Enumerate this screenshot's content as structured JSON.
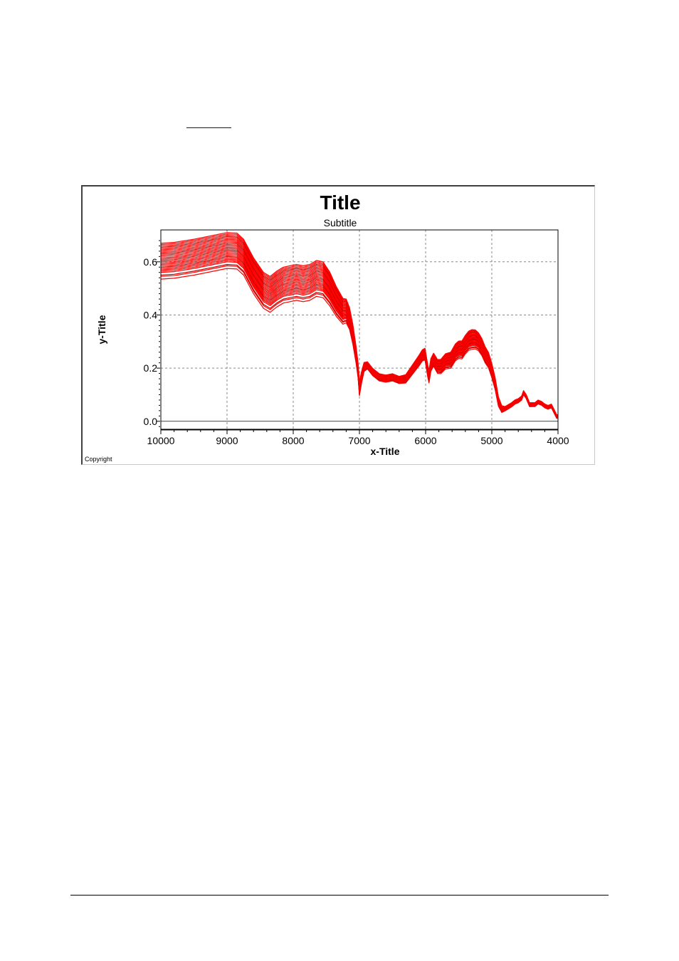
{
  "link": {
    "text": ""
  },
  "chart_data": {
    "type": "line",
    "title": "Title",
    "subtitle": "Subtitle",
    "xlabel": "x-Title",
    "ylabel": "y-Title",
    "copyright": "Copyright",
    "xlim": [
      10000,
      4000
    ],
    "ylim": [
      -0.03,
      0.72
    ],
    "x_reversed": true,
    "x_ticks": [
      "10000",
      "9000",
      "8000",
      "7000",
      "6000",
      "5000",
      "4000"
    ],
    "y_ticks": [
      "0.0",
      "0.2",
      "0.4",
      "0.6"
    ],
    "x_tick_values": [
      10000,
      9000,
      8000,
      7000,
      6000,
      5000,
      4000
    ],
    "y_tick_values": [
      0.0,
      0.2,
      0.4,
      0.6
    ],
    "grid": true,
    "series_color": "#ff0000",
    "series_color_alt": "#c00000",
    "base_spectrum": {
      "x": [
        10000,
        9800,
        9500,
        9200,
        9000,
        8850,
        8750,
        8600,
        8450,
        8350,
        8250,
        8150,
        8050,
        7950,
        7850,
        7750,
        7650,
        7550,
        7450,
        7350,
        7250,
        7200,
        7150,
        7100,
        7050,
        7020,
        7000,
        6970,
        6930,
        6880,
        6800,
        6700,
        6600,
        6500,
        6400,
        6300,
        6200,
        6100,
        6050,
        6010,
        5970,
        5950,
        5920,
        5880,
        5820,
        5770,
        5700,
        5620,
        5550,
        5500,
        5450,
        5400,
        5350,
        5300,
        5250,
        5200,
        5150,
        5100,
        5050,
        5000,
        4950,
        4900,
        4850,
        4800,
        4700,
        4650,
        4600,
        4550,
        4520,
        4480,
        4430,
        4350,
        4300,
        4250,
        4200,
        4150,
        4100,
        4070,
        4040,
        4020,
        4000
      ],
      "y": [
        0.625,
        0.628,
        0.64,
        0.655,
        0.665,
        0.663,
        0.64,
        0.57,
        0.515,
        0.5,
        0.52,
        0.535,
        0.54,
        0.545,
        0.54,
        0.545,
        0.56,
        0.555,
        0.52,
        0.47,
        0.43,
        0.43,
        0.4,
        0.34,
        0.26,
        0.2,
        0.13,
        0.17,
        0.21,
        0.215,
        0.19,
        0.17,
        0.165,
        0.17,
        0.16,
        0.165,
        0.2,
        0.235,
        0.255,
        0.26,
        0.2,
        0.175,
        0.22,
        0.24,
        0.215,
        0.215,
        0.235,
        0.24,
        0.27,
        0.28,
        0.28,
        0.3,
        0.315,
        0.32,
        0.32,
        0.31,
        0.29,
        0.26,
        0.24,
        0.2,
        0.15,
        0.08,
        0.05,
        0.05,
        0.065,
        0.075,
        0.08,
        0.09,
        0.11,
        0.095,
        0.065,
        0.065,
        0.075,
        0.07,
        0.06,
        0.055,
        0.06,
        0.045,
        0.03,
        0.02,
        0.02
      ]
    },
    "offsets": [
      -0.09,
      -0.08,
      -0.075,
      -0.065,
      -0.06,
      -0.055,
      -0.05,
      -0.045,
      -0.04,
      -0.035,
      -0.03,
      -0.025,
      -0.02,
      -0.015,
      -0.01,
      -0.005,
      0.0,
      0.005,
      0.01,
      0.015,
      0.02,
      0.025,
      0.03,
      0.035,
      0.04,
      0.045
    ],
    "offset_taper": [
      {
        "x": 10000,
        "f": 1.0
      },
      {
        "x": 7500,
        "f": 1.0
      },
      {
        "x": 7100,
        "f": 0.55
      },
      {
        "x": 6900,
        "f": 0.2
      },
      {
        "x": 6400,
        "f": 0.2
      },
      {
        "x": 5300,
        "f": 0.55
      },
      {
        "x": 5000,
        "f": 0.4
      },
      {
        "x": 4800,
        "f": 0.12
      },
      {
        "x": 4000,
        "f": 0.1
      }
    ]
  }
}
